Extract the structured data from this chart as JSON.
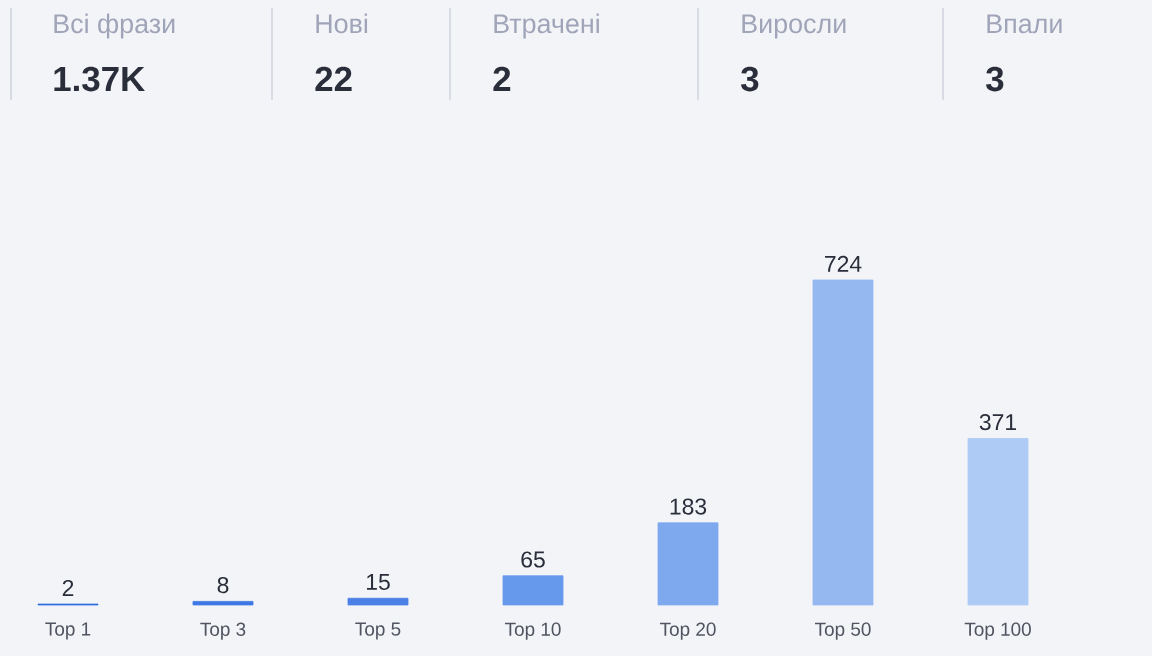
{
  "chart_data": [
    {
      "type": "other",
      "categories": [
        "Всі фрази",
        "Нові",
        "Втрачені",
        "Виросли",
        "Впали"
      ],
      "value_labels": [
        "1.37K",
        "22",
        "2",
        "3",
        "3"
      ]
    },
    {
      "type": "bar",
      "categories": [
        "Top 1",
        "Top 3",
        "Top 5",
        "Top 10",
        "Top 20",
        "Top 50",
        "Top 100"
      ],
      "values": [
        2,
        8,
        15,
        65,
        183,
        724,
        371
      ],
      "colors": [
        "#2f6be0",
        "#3d78e4",
        "#4a80e6",
        "#6699ec",
        "#7ea9ef",
        "#96b8f1",
        "#aecbf5"
      ],
      "data_labels": true
    }
  ]
}
